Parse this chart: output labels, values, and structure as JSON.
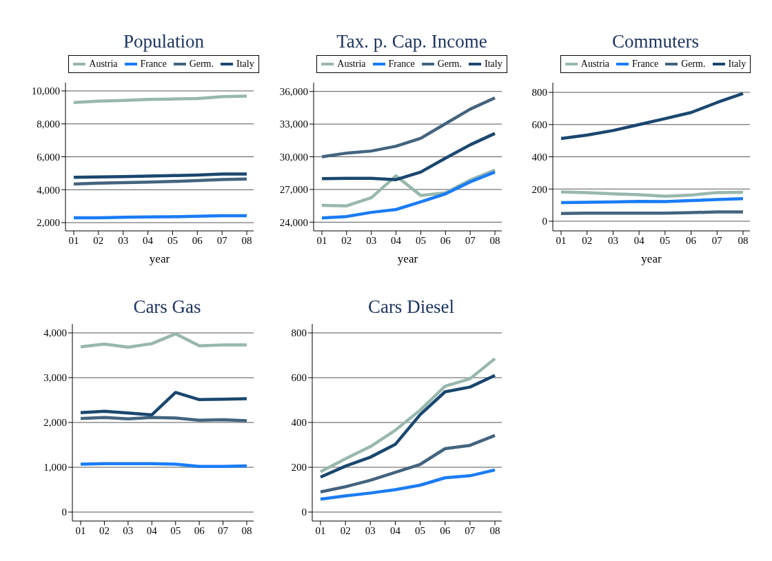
{
  "chart_data": [
    {
      "type": "line",
      "title": "Population",
      "xlabel": "year",
      "categories": [
        "01",
        "02",
        "03",
        "04",
        "05",
        "06",
        "07",
        "08"
      ],
      "ylim": [
        1500,
        10500
      ],
      "yticks": [
        {
          "value": 2000,
          "label": "2,000"
        },
        {
          "value": 4000,
          "label": "4,000"
        },
        {
          "value": 6000,
          "label": "6,000"
        },
        {
          "value": 8000,
          "label": "8,000"
        },
        {
          "value": 10000,
          "label": "10,000"
        }
      ],
      "grid": "y",
      "legend": "top",
      "marker": "none",
      "line_style": "solid",
      "series": [
        {
          "name": "Austria",
          "color": "#98b8ad",
          "values": [
            9300,
            9380,
            9420,
            9480,
            9510,
            9540,
            9650,
            9680
          ]
        },
        {
          "name": "France",
          "color": "#1a7cf5",
          "values": [
            2300,
            2300,
            2330,
            2350,
            2360,
            2390,
            2420,
            2420
          ]
        },
        {
          "name": "Germ.",
          "color": "#44647e",
          "values": [
            4350,
            4400,
            4430,
            4460,
            4500,
            4560,
            4620,
            4650
          ]
        },
        {
          "name": "Italy",
          "color": "#1a476f",
          "values": [
            4750,
            4780,
            4800,
            4830,
            4860,
            4890,
            4950,
            4950
          ]
        }
      ]
    },
    {
      "type": "line",
      "title": "Tax. p. Cap. Income",
      "xlabel": "year",
      "categories": [
        "01",
        "02",
        "03",
        "04",
        "05",
        "06",
        "07",
        "08"
      ],
      "ylim": [
        23200,
        36800
      ],
      "yticks": [
        {
          "value": 24000,
          "label": "24,000"
        },
        {
          "value": 27000,
          "label": "27,000"
        },
        {
          "value": 30000,
          "label": "30,000"
        },
        {
          "value": 33000,
          "label": "33,000"
        },
        {
          "value": 36000,
          "label": "36,000"
        }
      ],
      "grid": "y",
      "legend": "top",
      "marker": "none",
      "line_style": "solid",
      "series": [
        {
          "name": "Austria",
          "color": "#98b8ad",
          "values": [
            25540,
            25500,
            26240,
            28250,
            26450,
            26700,
            27870,
            28780
          ]
        },
        {
          "name": "France",
          "color": "#1a7cf5",
          "values": [
            24380,
            24520,
            24900,
            25160,
            25860,
            26600,
            27700,
            28600
          ]
        },
        {
          "name": "Germ.",
          "color": "#44647e",
          "values": [
            30000,
            30340,
            30530,
            30970,
            31700,
            33040,
            34370,
            35410
          ]
        },
        {
          "name": "Italy",
          "color": "#1a476f",
          "values": [
            27990,
            28030,
            28030,
            27900,
            28600,
            29870,
            31100,
            32140
          ]
        }
      ]
    },
    {
      "type": "line",
      "title": "Commuters",
      "xlabel": "year",
      "categories": [
        "01",
        "02",
        "03",
        "04",
        "05",
        "06",
        "07",
        "08"
      ],
      "ylim": [
        -60,
        860
      ],
      "yticks": [
        0,
        200,
        400,
        600,
        800
      ],
      "grid": "y",
      "legend": "top",
      "marker": "none",
      "line_style": "solid",
      "series": [
        {
          "name": "Austria",
          "color": "#98b8ad",
          "values": [
            182,
            178,
            170,
            165,
            155,
            162,
            178,
            180
          ]
        },
        {
          "name": "France",
          "color": "#1a7cf5",
          "values": [
            115,
            118,
            120,
            123,
            122,
            128,
            135,
            140
          ]
        },
        {
          "name": "Germ.",
          "color": "#44647e",
          "values": [
            48,
            50,
            50,
            50,
            50,
            53,
            58,
            58
          ]
        },
        {
          "name": "Italy",
          "color": "#1a476f",
          "values": [
            513,
            535,
            563,
            600,
            637,
            675,
            737,
            793
          ]
        }
      ]
    },
    {
      "type": "line",
      "title": "Cars Gas",
      "categories": [
        "01",
        "02",
        "03",
        "04",
        "05",
        "06",
        "07",
        "08"
      ],
      "ylim": [
        -200,
        4200
      ],
      "yticks": [
        0,
        {
          "value": 1000,
          "label": "1,000"
        },
        {
          "value": 2000,
          "label": "2,000"
        },
        {
          "value": 3000,
          "label": "3,000"
        },
        {
          "value": 4000,
          "label": "4,000"
        }
      ],
      "grid": "y",
      "marker": "none",
      "line_style": "solid",
      "series": [
        {
          "color": "#98b8ad",
          "values": [
            3690,
            3750,
            3680,
            3760,
            3980,
            3710,
            3730,
            3730
          ]
        },
        {
          "color": "#1a7cf5",
          "values": [
            1070,
            1080,
            1080,
            1080,
            1070,
            1020,
            1020,
            1030
          ]
        },
        {
          "color": "#44647e",
          "values": [
            2090,
            2110,
            2080,
            2110,
            2100,
            2050,
            2060,
            2040
          ]
        },
        {
          "color": "#1a476f",
          "values": [
            2220,
            2250,
            2210,
            2170,
            2670,
            2510,
            2520,
            2530
          ]
        }
      ]
    },
    {
      "type": "line",
      "title": "Cars Diesel",
      "categories": [
        "01",
        "02",
        "03",
        "04",
        "05",
        "06",
        "07",
        "08"
      ],
      "ylim": [
        -40,
        840
      ],
      "yticks": [
        0,
        200,
        400,
        600,
        800
      ],
      "grid": "y",
      "marker": "none",
      "line_style": "solid",
      "series": [
        {
          "color": "#98b8ad",
          "values": [
            180,
            238,
            292,
            365,
            455,
            562,
            595,
            685
          ]
        },
        {
          "color": "#1a7cf5",
          "values": [
            58,
            72,
            85,
            100,
            120,
            153,
            162,
            188
          ]
        },
        {
          "color": "#44647e",
          "values": [
            90,
            113,
            142,
            177,
            213,
            283,
            298,
            342
          ]
        },
        {
          "color": "#1a476f",
          "values": [
            156,
            205,
            245,
            302,
            435,
            537,
            558,
            610
          ]
        }
      ]
    }
  ]
}
